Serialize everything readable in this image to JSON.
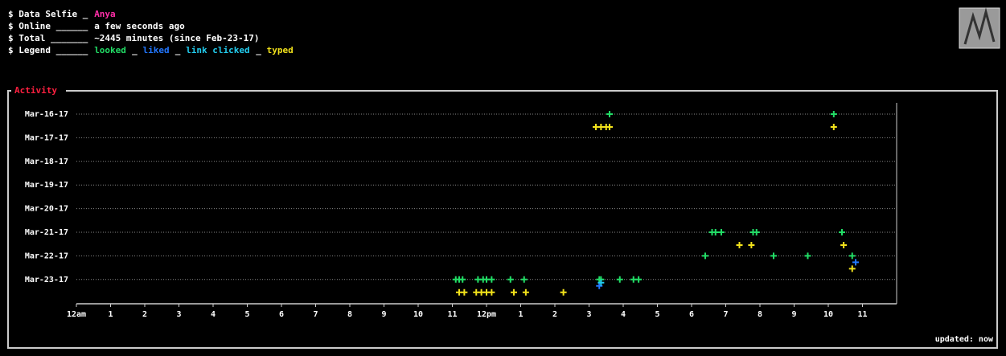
{
  "header": {
    "rows": [
      {
        "label": "$ Data Selfie _",
        "value": "Anya",
        "color": "#ff2fa8"
      },
      {
        "label": "$ Online ______",
        "value": "a few seconds ago",
        "color": "#ffffff"
      },
      {
        "label": "$ Total _______",
        "value": "~2445 minutes (since Feb-23-17)",
        "color": "#ffffff"
      }
    ],
    "legend_label": "$ Legend ______",
    "separator": "_"
  },
  "status": "updated: now",
  "chart_data": {
    "type": "scatter",
    "title": "Activity",
    "categories": [
      "Mar-16-17",
      "Mar-17-17",
      "Mar-18-17",
      "Mar-19-17",
      "Mar-20-17",
      "Mar-21-17",
      "Mar-22-17",
      "Mar-23-17"
    ],
    "xlim": [
      0,
      24
    ],
    "xticks": [
      {
        "value": 0,
        "label": "12am"
      },
      1,
      2,
      3,
      4,
      5,
      6,
      7,
      8,
      9,
      10,
      11,
      {
        "value": 12,
        "label": "12pm"
      },
      {
        "value": 13,
        "label": "1"
      },
      {
        "value": 14,
        "label": "2"
      },
      {
        "value": 15,
        "label": "3"
      },
      {
        "value": 16,
        "label": "4"
      },
      {
        "value": 17,
        "label": "5"
      },
      {
        "value": 18,
        "label": "6"
      },
      {
        "value": 19,
        "label": "7"
      },
      {
        "value": 20,
        "label": "8"
      },
      {
        "value": 21,
        "label": "9"
      },
      {
        "value": 22,
        "label": "10"
      },
      {
        "value": 23,
        "label": "11"
      }
    ],
    "grid": true,
    "series": [
      {
        "name": "looked",
        "color": "#22dd66",
        "x": [
          15.6,
          22.16,
          18.6,
          18.7,
          18.87,
          19.8,
          19.9,
          22.4,
          18.4,
          20.4,
          21.4,
          22.7,
          11.1,
          11.2,
          11.3,
          11.75,
          11.9,
          12.0,
          12.15,
          12.7,
          13.1,
          15.3,
          15.35,
          15.9,
          16.3,
          16.45
        ],
        "y": [
          "Mar-16-17",
          "Mar-16-17",
          "Mar-21-17",
          "Mar-21-17",
          "Mar-21-17",
          "Mar-21-17",
          "Mar-21-17",
          "Mar-21-17",
          "Mar-22-17",
          "Mar-22-17",
          "Mar-22-17",
          "Mar-22-17",
          "Mar-23-17",
          "Mar-23-17",
          "Mar-23-17",
          "Mar-23-17",
          "Mar-23-17",
          "Mar-23-17",
          "Mar-23-17",
          "Mar-23-17",
          "Mar-23-17",
          "Mar-23-17",
          "Mar-23-17",
          "Mar-23-17",
          "Mar-23-17",
          "Mar-23-17"
        ]
      },
      {
        "name": "liked",
        "color": "#2277ff",
        "x": [
          22.8,
          15.3
        ],
        "y": [
          "Mar-22-17",
          "Mar-23-17"
        ]
      },
      {
        "name": "link clicked",
        "color": "#22ccee",
        "x": [
          15.35
        ],
        "y": [
          "Mar-23-17"
        ]
      },
      {
        "name": "typed",
        "color": "#f2e21b",
        "x": [
          15.2,
          15.35,
          15.5,
          15.6,
          22.16,
          19.4,
          19.75,
          22.45,
          22.7,
          11.2,
          11.35,
          11.7,
          11.85,
          12.0,
          12.15,
          12.8,
          13.15,
          14.25
        ],
        "y": [
          "Mar-16-17",
          "Mar-16-17",
          "Mar-16-17",
          "Mar-16-17",
          "Mar-16-17",
          "Mar-21-17",
          "Mar-21-17",
          "Mar-21-17",
          "Mar-22-17",
          "Mar-23-17",
          "Mar-23-17",
          "Mar-23-17",
          "Mar-23-17",
          "Mar-23-17",
          "Mar-23-17",
          "Mar-23-17",
          "Mar-23-17",
          "Mar-23-17"
        ]
      }
    ]
  }
}
